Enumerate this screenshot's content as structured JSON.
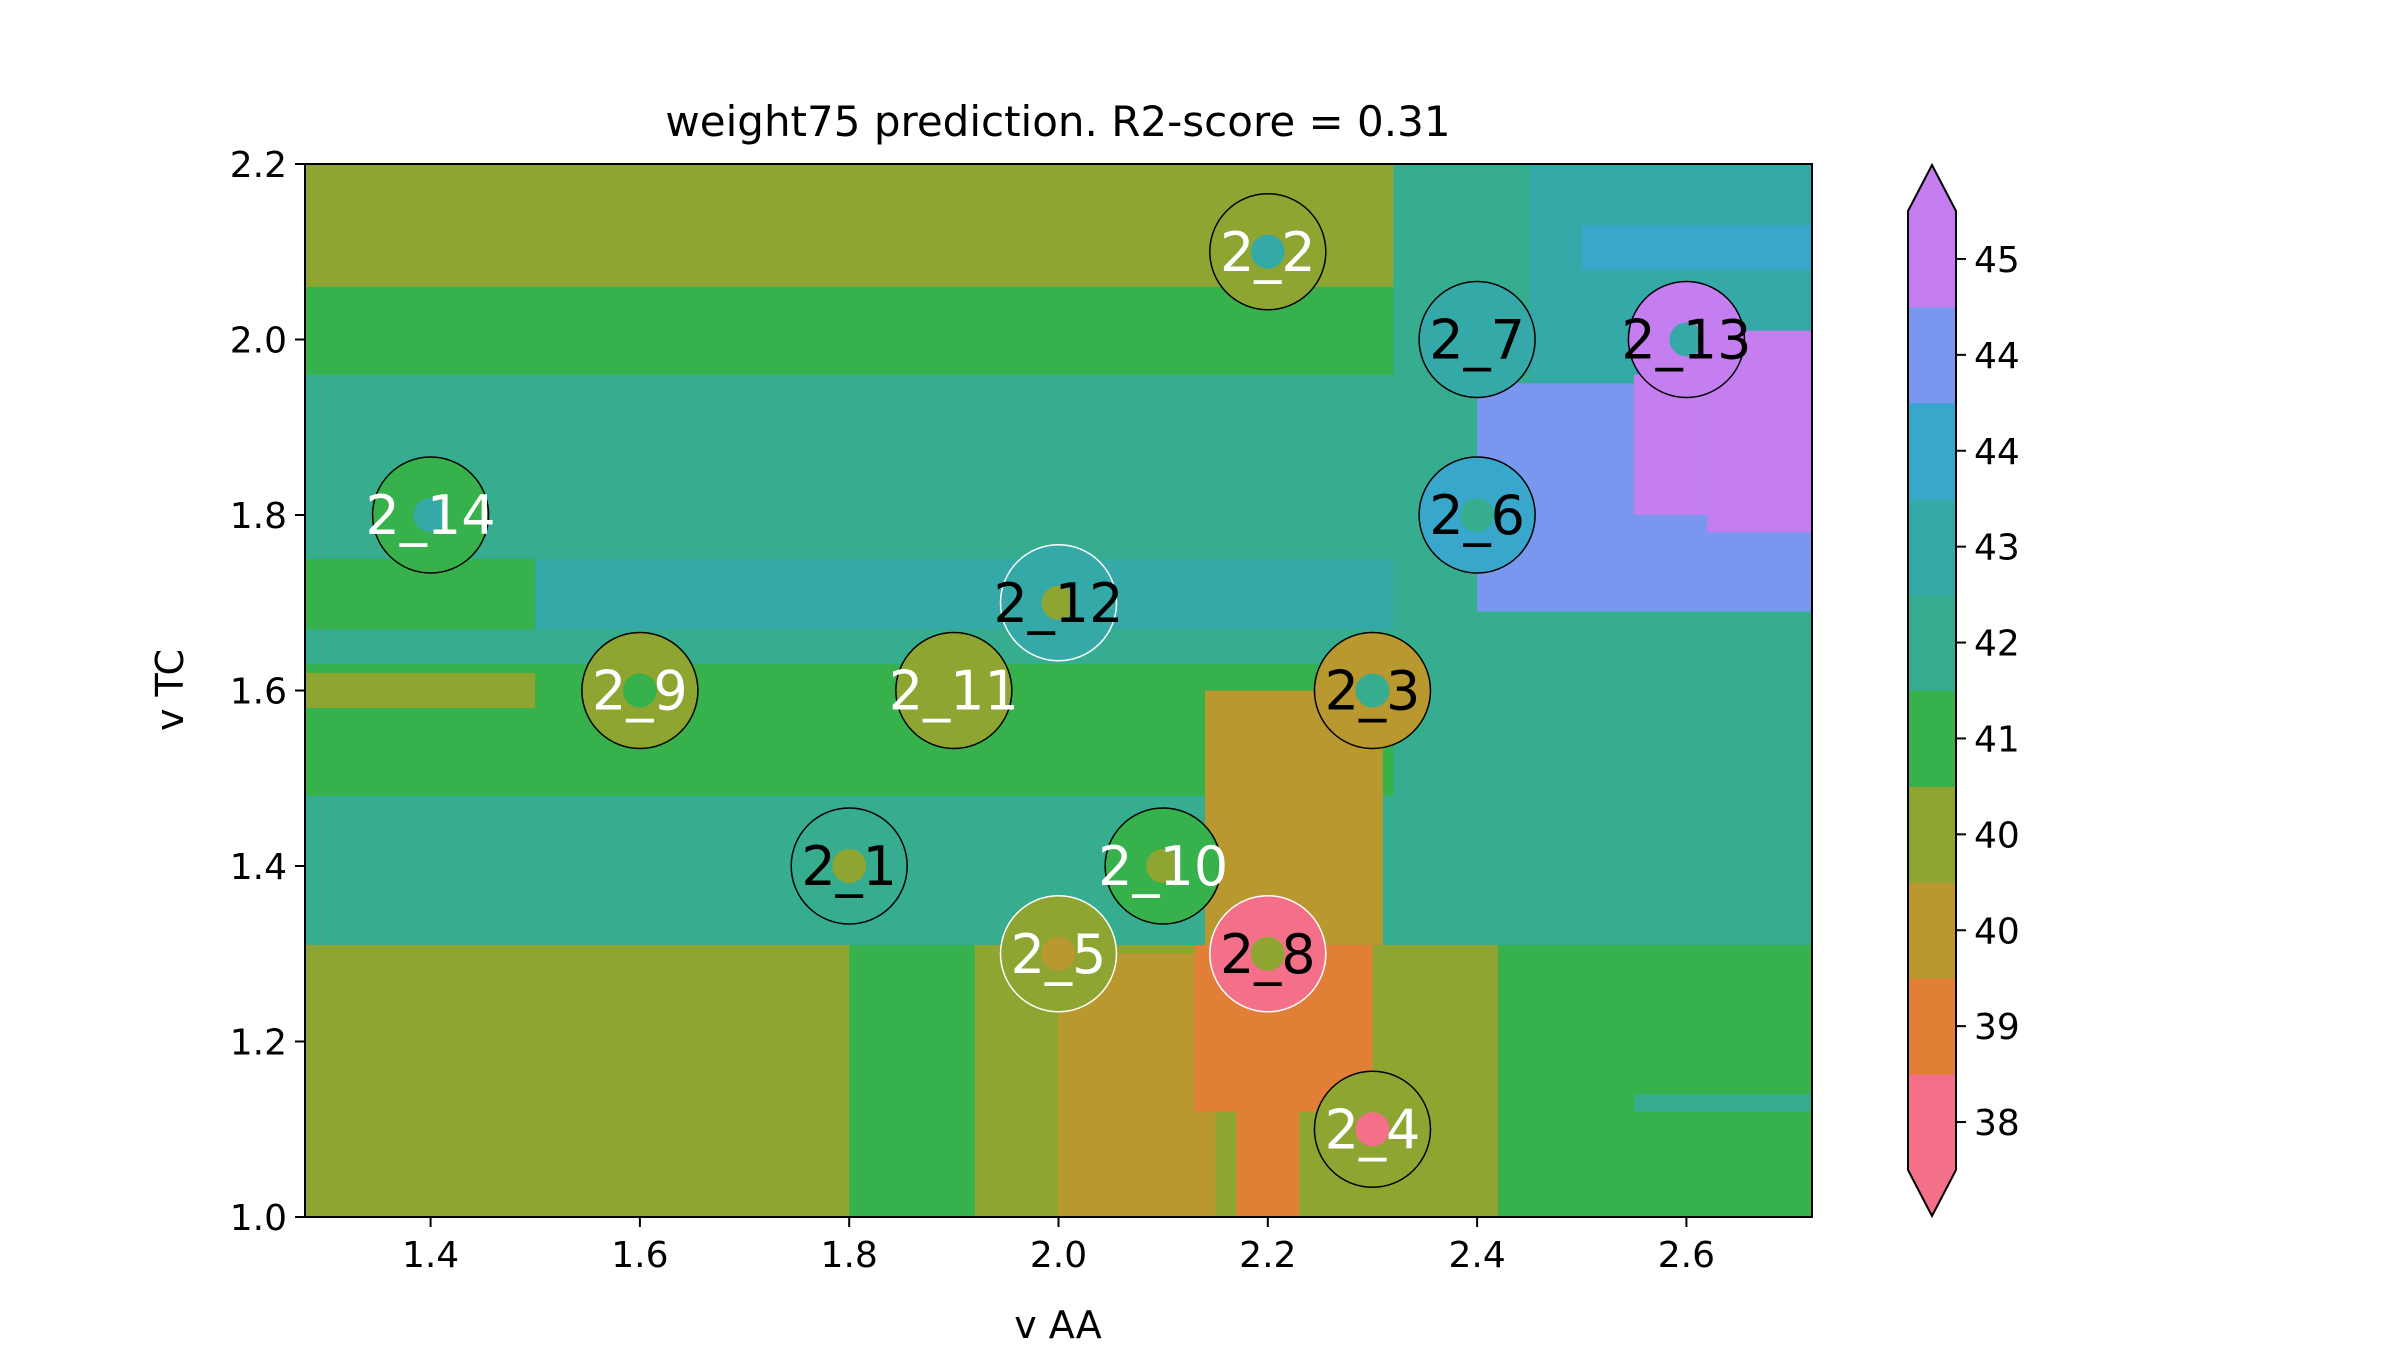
{
  "chart_data": {
    "type": "contour",
    "title": "weight75 prediction. R2-score = 0.31",
    "xlabel": "v AA",
    "ylabel": "v TC",
    "xlim": [
      1.28,
      2.72
    ],
    "ylim": [
      1.0,
      2.2
    ],
    "xticks": [
      1.4,
      1.6,
      1.8,
      2.0,
      2.2,
      2.4,
      2.6
    ],
    "xtick_labels": [
      "1.4",
      "1.6",
      "1.8",
      "2.0",
      "2.2",
      "2.4",
      "2.6"
    ],
    "yticks": [
      1.0,
      1.2,
      1.4,
      1.6,
      1.8,
      2.0,
      2.2
    ],
    "ytick_labels": [
      "1.0",
      "1.2",
      "1.4",
      "1.6",
      "1.8",
      "2.0",
      "2.2"
    ],
    "colorbar": {
      "extend": "both",
      "levels": [
        {
          "label": "38",
          "color": "#f37088"
        },
        {
          "label": "39",
          "color": "#e27f36"
        },
        {
          "label": "40",
          "color": "#b8982f"
        },
        {
          "label": "40",
          "color": "#8fa532"
        },
        {
          "label": "41",
          "color": "#36b14b"
        },
        {
          "label": "42",
          "color": "#35ad8e"
        },
        {
          "label": "43",
          "color": "#35a9a8"
        },
        {
          "label": "44",
          "color": "#39a7cb"
        },
        {
          "label": "44",
          "color": "#7a97f0"
        },
        {
          "label": "45",
          "color": "#c57ef0"
        }
      ]
    },
    "regions": [
      {
        "x": [
          1.28,
          2.72
        ],
        "y": [
          1.0,
          2.2
        ],
        "level": 4
      },
      {
        "x": [
          1.28,
          2.72
        ],
        "y": [
          1.82,
          1.96
        ],
        "level": 5
      },
      {
        "x": [
          1.28,
          2.72
        ],
        "y": [
          1.75,
          1.82
        ],
        "level": 5
      },
      {
        "x": [
          1.5,
          2.45
        ],
        "y": [
          1.67,
          1.75
        ],
        "level": 6
      },
      {
        "x": [
          1.28,
          2.72
        ],
        "y": [
          1.63,
          1.67
        ],
        "level": 5
      },
      {
        "x": [
          1.28,
          2.72
        ],
        "y": [
          1.31,
          1.48
        ],
        "level": 5
      },
      {
        "x": [
          1.28,
          2.72
        ],
        "y": [
          2.06,
          2.2
        ],
        "level": 3
      },
      {
        "x": [
          2.32,
          2.72
        ],
        "y": [
          1.31,
          2.2
        ],
        "level": 5
      },
      {
        "x": [
          2.45,
          2.72
        ],
        "y": [
          1.95,
          2.2
        ],
        "level": 6
      },
      {
        "x": [
          2.5,
          2.72
        ],
        "y": [
          2.08,
          2.13
        ],
        "level": 7
      },
      {
        "x": [
          2.4,
          2.72
        ],
        "y": [
          1.69,
          1.95
        ],
        "level": 8
      },
      {
        "x": [
          2.62,
          2.72
        ],
        "y": [
          1.78,
          2.01
        ],
        "level": 9
      },
      {
        "x": [
          2.55,
          2.62
        ],
        "y": [
          1.8,
          1.96
        ],
        "level": 9
      },
      {
        "x": [
          1.28,
          1.5
        ],
        "y": [
          1.58,
          1.62
        ],
        "level": 3
      },
      {
        "x": [
          1.28,
          1.8
        ],
        "y": [
          1.0,
          1.31
        ],
        "level": 3
      },
      {
        "x": [
          1.92,
          2.0
        ],
        "y": [
          1.0,
          1.31
        ],
        "level": 3
      },
      {
        "x": [
          2.0,
          2.42
        ],
        "y": [
          1.0,
          1.31
        ],
        "level": 3
      },
      {
        "x": [
          2.0,
          2.15
        ],
        "y": [
          1.0,
          1.3
        ],
        "level": 2
      },
      {
        "x": [
          2.14,
          2.31
        ],
        "y": [
          1.31,
          1.6
        ],
        "level": 2
      },
      {
        "x": [
          2.13,
          2.3
        ],
        "y": [
          1.12,
          1.31
        ],
        "level": 1
      },
      {
        "x": [
          2.17,
          2.23
        ],
        "y": [
          1.0,
          1.12
        ],
        "level": 1
      },
      {
        "x": [
          2.42,
          2.72
        ],
        "y": [
          1.0,
          1.31
        ],
        "level": 4
      },
      {
        "x": [
          2.55,
          2.72
        ],
        "y": [
          1.12,
          1.14
        ],
        "level": 5
      }
    ],
    "points": [
      {
        "label": "2_1",
        "x": 1.8,
        "y": 1.4,
        "ring_level": 5,
        "dot_level": 3,
        "label_color": "black",
        "ring_color": "black"
      },
      {
        "label": "2_2",
        "x": 2.2,
        "y": 2.1,
        "ring_level": 3,
        "dot_level": 6,
        "label_color": "white",
        "ring_color": "black"
      },
      {
        "label": "2_3",
        "x": 2.3,
        "y": 1.6,
        "ring_level": 2,
        "dot_level": 5,
        "label_color": "black",
        "ring_color": "black"
      },
      {
        "label": "2_4",
        "x": 2.3,
        "y": 1.1,
        "ring_level": 3,
        "dot_level": 0,
        "label_color": "white",
        "ring_color": "black"
      },
      {
        "label": "2_5",
        "x": 2.0,
        "y": 1.3,
        "ring_level": 3,
        "dot_level": 2,
        "label_color": "white",
        "ring_color": "white"
      },
      {
        "label": "2_6",
        "x": 2.4,
        "y": 1.8,
        "ring_level": 7,
        "dot_level": 5,
        "label_color": "black",
        "ring_color": "black"
      },
      {
        "label": "2_7",
        "x": 2.4,
        "y": 2.0,
        "ring_level": 6,
        "dot_level": 6,
        "label_color": "black",
        "ring_color": "black"
      },
      {
        "label": "2_8",
        "x": 2.2,
        "y": 1.3,
        "ring_level": 0,
        "dot_level": 3,
        "label_color": "black",
        "ring_color": "white"
      },
      {
        "label": "2_9",
        "x": 1.6,
        "y": 1.6,
        "ring_level": 3,
        "dot_level": 4,
        "label_color": "white",
        "ring_color": "black"
      },
      {
        "label": "2_10",
        "x": 2.1,
        "y": 1.4,
        "ring_level": 4,
        "dot_level": 3,
        "label_color": "white",
        "ring_color": "black"
      },
      {
        "label": "2_11",
        "x": 1.9,
        "y": 1.6,
        "ring_level": 3,
        "dot_level": 3,
        "label_color": "white",
        "ring_color": "black"
      },
      {
        "label": "2_12",
        "x": 2.0,
        "y": 1.7,
        "ring_level": 6,
        "dot_level": 3,
        "label_color": "black",
        "ring_color": "white"
      },
      {
        "label": "2_13",
        "x": 2.6,
        "y": 2.0,
        "ring_level": 9,
        "dot_level": 6,
        "label_color": "black",
        "ring_color": "black"
      },
      {
        "label": "2_14",
        "x": 1.4,
        "y": 1.8,
        "ring_level": 4,
        "dot_level": 6,
        "label_color": "white",
        "ring_color": "black"
      }
    ]
  }
}
